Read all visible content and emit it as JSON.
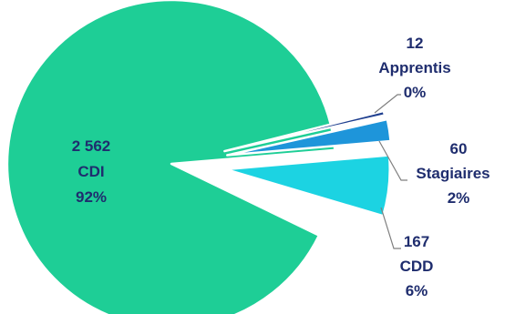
{
  "chart_data": {
    "type": "pie",
    "exploded": true,
    "slices": [
      {
        "key": "cdi",
        "name": "CDI",
        "count": "2 562",
        "percent": "92%",
        "value": 2562,
        "color": "#1ECE96"
      },
      {
        "key": "apprentis",
        "name": "Apprentis",
        "count": "12",
        "percent": "0%",
        "value": 12,
        "color": "#1F3F8F"
      },
      {
        "key": "stagiaires",
        "name": "Stagiaires",
        "count": "60",
        "percent": "2%",
        "value": 60,
        "color": "#1E95DA"
      },
      {
        "key": "cdd",
        "name": "CDD",
        "count": "167",
        "percent": "6%",
        "value": 167,
        "color": "#1CD3E2"
      }
    ],
    "legend": "none",
    "label_color": "#1F2D6E"
  }
}
